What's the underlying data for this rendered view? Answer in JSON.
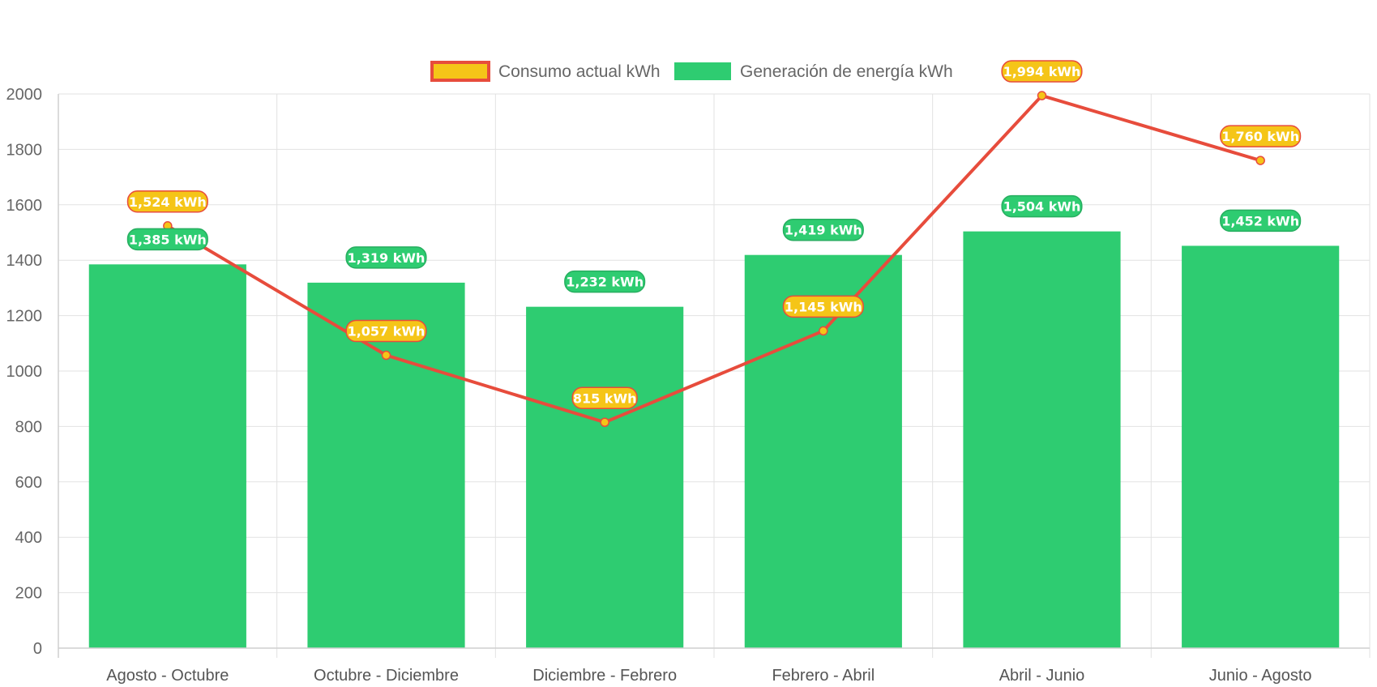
{
  "chart_data": {
    "type": "bar",
    "categories": [
      "Agosto - Octubre",
      "Octubre - Diciembre",
      "Diciembre - Febrero",
      "Febrero - Abril",
      "Abril - Junio",
      "Junio - Agosto"
    ],
    "series": [
      {
        "name": "Consumo actual kWh",
        "type": "line",
        "values": [
          1524,
          1057,
          815,
          1145,
          1994,
          1760
        ],
        "labels": [
          "1,524 kWh",
          "1,057 kWh",
          "815 kWh",
          "1,145 kWh",
          "1,994 kWh",
          "1,760 kWh"
        ],
        "color": "#e74c3c",
        "fill": "#f5c518"
      },
      {
        "name": "Generación de energía kWh",
        "type": "bar",
        "values": [
          1385,
          1319,
          1232,
          1419,
          1504,
          1452
        ],
        "labels": [
          "1,385 kWh",
          "1,319 kWh",
          "1,232 kWh",
          "1,419 kWh",
          "1,504 kWh",
          "1,452 kWh"
        ],
        "color": "#2ecc71",
        "border": "#27ae60"
      }
    ],
    "ylim": [
      0,
      2000
    ],
    "yticks": [
      0,
      200,
      400,
      600,
      800,
      1000,
      1200,
      1400,
      1600,
      1800,
      2000
    ],
    "grid": true,
    "legend": "top-center",
    "title": "",
    "xlabel": "",
    "ylabel": ""
  }
}
